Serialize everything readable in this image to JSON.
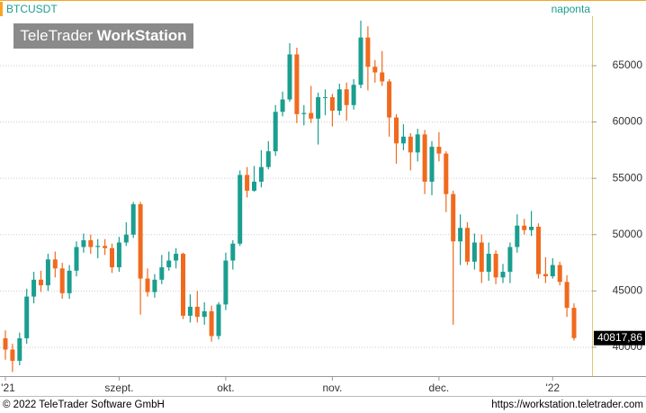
{
  "header": {
    "symbol": "BTCUSDT",
    "interval": "naponta",
    "watermark_light": "TeleTrader ",
    "watermark_bold": "WorkStation"
  },
  "footer": {
    "copyright": "© 2022 TeleTrader Software GmbH",
    "url": "https://workstation.teletrader.com"
  },
  "chart_data": {
    "type": "candlestick",
    "up_color": "#1a9e8f",
    "down_color": "#f06a1e",
    "grid": true,
    "categories": [
      "'21",
      null,
      null,
      null,
      null,
      null,
      null,
      null,
      null,
      null,
      null,
      null,
      null,
      null,
      null,
      null,
      "szept.",
      null,
      null,
      null,
      null,
      null,
      null,
      null,
      null,
      null,
      null,
      null,
      null,
      null,
      null,
      "okt.",
      null,
      null,
      null,
      null,
      null,
      null,
      null,
      null,
      null,
      null,
      null,
      null,
      null,
      null,
      "nov.",
      null,
      null,
      null,
      null,
      null,
      null,
      null,
      null,
      null,
      null,
      null,
      null,
      null,
      null,
      "dec.",
      null,
      null,
      null,
      null,
      null,
      null,
      null,
      null,
      null,
      null,
      null,
      null,
      null,
      null,
      null,
      "'22",
      null,
      null,
      null
    ],
    "open": [
      40800,
      39800,
      38800,
      40800,
      44500,
      46000,
      45500,
      47800,
      47000,
      44800,
      46800,
      48900,
      49500,
      48900,
      49000,
      48800,
      47100,
      49300,
      50000,
      52700,
      46100,
      44900,
      46000,
      47100,
      47700,
      48300,
      42800,
      43600,
      42700,
      43200,
      41000,
      43800,
      47700,
      49200,
      55300,
      53900,
      54700,
      56000,
      57400,
      60900,
      62000,
      66000,
      60700,
      60800,
      60300,
      62200,
      62200,
      61000,
      62900,
      61500,
      63300,
      67500,
      64900,
      64400,
      63600,
      60400,
      58100,
      58700,
      57300,
      58900,
      54700,
      57800,
      57200,
      53600,
      49400,
      50600,
      47600,
      49300,
      46700,
      48300,
      46200,
      46700,
      48900,
      50800,
      50400,
      50700,
      46500,
      46300,
      47300,
      45800,
      43500
    ],
    "high": [
      41500,
      40300,
      41300,
      45200,
      46700,
      46800,
      48300,
      48500,
      47500,
      47300,
      49400,
      50100,
      50000,
      49600,
      49600,
      49200,
      49800,
      51100,
      52900,
      52900,
      47000,
      46500,
      48200,
      48500,
      48800,
      48400,
      44700,
      45000,
      44000,
      43700,
      44000,
      48400,
      49500,
      55700,
      56000,
      56100,
      57500,
      58300,
      61500,
      62700,
      67000,
      66600,
      61500,
      63200,
      62600,
      62900,
      62500,
      63400,
      63500,
      63800,
      69000,
      68500,
      65500,
      66300,
      63800,
      60700,
      59800,
      59000,
      59400,
      59300,
      58300,
      59100,
      57400,
      53900,
      51800,
      51100,
      50100,
      50000,
      49300,
      48600,
      47400,
      49300,
      51800,
      51400,
      52100,
      51000,
      48000,
      47900,
      47600,
      46400,
      43900
    ],
    "low": [
      38900,
      37800,
      38400,
      40300,
      43900,
      44900,
      45000,
      46200,
      44300,
      44300,
      46300,
      48400,
      48300,
      47900,
      48200,
      46600,
      46700,
      49000,
      49700,
      42900,
      44500,
      44400,
      45600,
      46800,
      47000,
      42500,
      42200,
      42200,
      42000,
      40500,
      40700,
      43300,
      46900,
      49000,
      53300,
      53800,
      54200,
      55800,
      57000,
      60500,
      61800,
      59900,
      59700,
      59900,
      58000,
      60600,
      59600,
      60600,
      60100,
      61100,
      63000,
      62800,
      63500,
      63200,
      58700,
      56300,
      57500,
      55700,
      56500,
      53600,
      53500,
      56500,
      52000,
      42000,
      47300,
      47300,
      46900,
      45700,
      45900,
      45600,
      45700,
      45700,
      48400,
      50000,
      49900,
      46100,
      45700,
      46100,
      45500,
      42700,
      40600
    ],
    "close": [
      39800,
      38800,
      40800,
      44500,
      46000,
      45500,
      47800,
      47000,
      44800,
      46800,
      48900,
      49500,
      48900,
      49000,
      48800,
      47100,
      49300,
      50000,
      52700,
      46100,
      44900,
      46000,
      47100,
      47700,
      48300,
      42800,
      43600,
      42700,
      43200,
      41000,
      43800,
      47700,
      49200,
      55300,
      53900,
      54700,
      56000,
      57400,
      60900,
      62000,
      66000,
      60700,
      60800,
      60300,
      62200,
      62200,
      61000,
      62900,
      61500,
      63300,
      67500,
      64900,
      64400,
      63600,
      60400,
      58100,
      58700,
      57300,
      58900,
      54700,
      57800,
      57200,
      53600,
      49400,
      50600,
      47600,
      49300,
      46700,
      48300,
      46200,
      46700,
      48900,
      50800,
      50400,
      50700,
      46500,
      46300,
      47300,
      45800,
      43500,
      40817.86
    ],
    "last_close_label": "40817,86",
    "ylim": [
      37440,
      70830
    ],
    "yticks": [
      40000,
      45000,
      50000,
      55000,
      60000,
      65000
    ]
  }
}
